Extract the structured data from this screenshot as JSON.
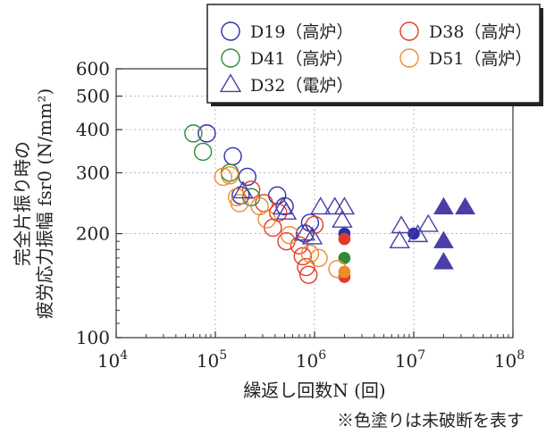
{
  "chart_data": {
    "type": "scatter",
    "xlabel": "繰返し回数N (回)",
    "ylabel_line1": "完全片振り時の",
    "ylabel_line2": "疲労応力振幅 fsr0 (N/mm²)",
    "x_scale": "log",
    "y_scale": "log",
    "xlim": [
      10000,
      100000000
    ],
    "ylim": [
      100,
      600
    ],
    "x_ticks": [
      {
        "value": 10000,
        "base": "10",
        "exp": "4"
      },
      {
        "value": 100000,
        "base": "10",
        "exp": "5"
      },
      {
        "value": 1000000,
        "base": "10",
        "exp": "6"
      },
      {
        "value": 10000000,
        "base": "10",
        "exp": "7"
      },
      {
        "value": 100000000,
        "base": "10",
        "exp": "8"
      }
    ],
    "y_ticks": [
      {
        "value": 100,
        "label": "100"
      },
      {
        "value": 200,
        "label": "200"
      },
      {
        "value": 300,
        "label": "300"
      },
      {
        "value": 400,
        "label": "400"
      },
      {
        "value": 500,
        "label": "500"
      },
      {
        "value": 600,
        "label": "600"
      }
    ],
    "grid": true,
    "legend_position": "top-right",
    "note": "※色塗りは未破断を表す",
    "series": [
      {
        "name": "D19（高炉）",
        "marker": "circle",
        "color": "#2d2fa8",
        "points": [
          {
            "x": 82000,
            "y": 390
          },
          {
            "x": 150000,
            "y": 335
          },
          {
            "x": 210000,
            "y": 292
          },
          {
            "x": 180000,
            "y": 258
          },
          {
            "x": 420000,
            "y": 258
          },
          {
            "x": 500000,
            "y": 240
          },
          {
            "x": 800000,
            "y": 200
          },
          {
            "x": 900000,
            "y": 215
          },
          {
            "x": 2000000,
            "y": 200,
            "filled": true
          },
          {
            "x": 10000000,
            "y": 200,
            "filled": true
          }
        ]
      },
      {
        "name": "D38（高炉）",
        "marker": "circle",
        "color": "#e23a2c",
        "points": [
          {
            "x": 230000,
            "y": 268
          },
          {
            "x": 310000,
            "y": 245
          },
          {
            "x": 380000,
            "y": 208
          },
          {
            "x": 430000,
            "y": 230
          },
          {
            "x": 520000,
            "y": 190
          },
          {
            "x": 700000,
            "y": 185
          },
          {
            "x": 760000,
            "y": 172
          },
          {
            "x": 820000,
            "y": 160
          },
          {
            "x": 870000,
            "y": 152
          },
          {
            "x": 1000000,
            "y": 212
          },
          {
            "x": 2000000,
            "y": 193,
            "filled": true
          },
          {
            "x": 2000000,
            "y": 150,
            "filled": true
          }
        ]
      },
      {
        "name": "D41（高炉）",
        "marker": "circle",
        "color": "#2e8b3a",
        "points": [
          {
            "x": 60000,
            "y": 390
          },
          {
            "x": 75000,
            "y": 345
          },
          {
            "x": 140000,
            "y": 300
          },
          {
            "x": 230000,
            "y": 255
          },
          {
            "x": 2000000,
            "y": 170,
            "filled": true
          }
        ]
      },
      {
        "name": "D51（高炉）",
        "marker": "circle",
        "color": "#ef8c2a",
        "points": [
          {
            "x": 120000,
            "y": 292
          },
          {
            "x": 140000,
            "y": 295
          },
          {
            "x": 165000,
            "y": 255
          },
          {
            "x": 175000,
            "y": 245
          },
          {
            "x": 280000,
            "y": 240
          },
          {
            "x": 330000,
            "y": 220
          },
          {
            "x": 560000,
            "y": 198
          },
          {
            "x": 900000,
            "y": 175
          },
          {
            "x": 1100000,
            "y": 170
          },
          {
            "x": 1700000,
            "y": 158
          },
          {
            "x": 2000000,
            "y": 155,
            "filled": true
          }
        ]
      },
      {
        "name": "D32（電炉）",
        "marker": "triangle",
        "color": "#4a3fa6",
        "points": [
          {
            "x": 190000,
            "y": 265
          },
          {
            "x": 480000,
            "y": 238
          },
          {
            "x": 520000,
            "y": 230
          },
          {
            "x": 800000,
            "y": 200
          },
          {
            "x": 950000,
            "y": 195
          },
          {
            "x": 1150000,
            "y": 238
          },
          {
            "x": 1600000,
            "y": 238
          },
          {
            "x": 2000000,
            "y": 238
          },
          {
            "x": 1900000,
            "y": 218
          },
          {
            "x": 7500000,
            "y": 210
          },
          {
            "x": 7200000,
            "y": 190
          },
          {
            "x": 11000000,
            "y": 198
          },
          {
            "x": 14000000,
            "y": 212
          },
          {
            "x": 20000000,
            "y": 238,
            "filled": true
          },
          {
            "x": 33000000,
            "y": 238,
            "filled": true
          },
          {
            "x": 20000000,
            "y": 190,
            "filled": true
          },
          {
            "x": 20000000,
            "y": 165,
            "filled": true
          }
        ]
      }
    ]
  }
}
